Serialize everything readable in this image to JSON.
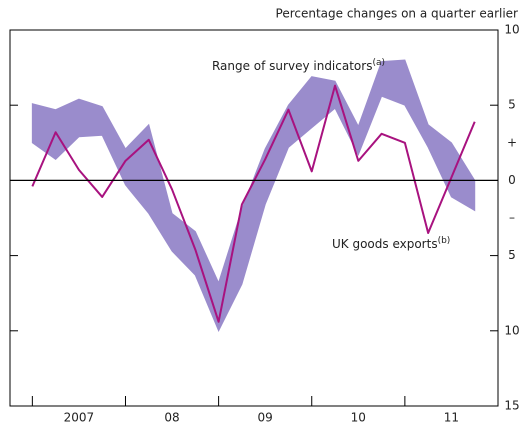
{
  "chart_data": {
    "type": "line",
    "y_axis_label": "Percentage changes on a quarter earlier",
    "x": [
      2007,
      2007.25,
      2007.5,
      2007.75,
      2008,
      2008.25,
      2008.5,
      2008.75,
      2009,
      2009.25,
      2009.5,
      2009.75,
      2010,
      2010.25,
      2010.5,
      2010.75,
      2011,
      2011.25,
      2011.5,
      2011.75
    ],
    "xlim": [
      2006.76,
      2012
    ],
    "xticks": [
      2007,
      {
        "value": 2008,
        "label": "08"
      },
      {
        "value": 2009,
        "label": "09"
      },
      {
        "value": 2010,
        "label": "10"
      },
      {
        "value": 2011,
        "label": "11"
      }
    ],
    "ylim": [
      -15,
      10
    ],
    "yticks": [
      10,
      5,
      0,
      {
        "value": -5,
        "label": "5"
      },
      {
        "value": -10,
        "label": "10"
      },
      {
        "value": -15,
        "label": "15"
      }
    ],
    "sign_labels": [
      "+",
      "–"
    ],
    "series": [
      {
        "name": "Range of survey indicators",
        "note": "(a)",
        "type": "band",
        "color": "#9a8ccc",
        "upper": [
          5.1,
          4.7,
          5.4,
          4.9,
          2.1,
          3.7,
          -2.2,
          -3.4,
          -6.8,
          -1.9,
          2.1,
          5.0,
          6.9,
          6.6,
          3.6,
          7.9,
          8.0,
          3.7,
          2.5,
          0
        ],
        "lower": [
          2.5,
          1.4,
          2.9,
          3.0,
          -0.3,
          -2.2,
          -4.7,
          -6.3,
          -10.0,
          -6.9,
          -1.6,
          2.2,
          3.5,
          4.8,
          1.7,
          5.6,
          5.0,
          2.2,
          -1.1,
          -2.0
        ]
      },
      {
        "name": "UK goods exports",
        "note": "(b)",
        "type": "line",
        "color": "#a8127f",
        "values": [
          -0.4,
          3.2,
          0.7,
          -1.1,
          1.3,
          2.7,
          -0.6,
          -4.6,
          -9.4,
          -1.6,
          1.4,
          4.7,
          0.6,
          6.3,
          1.3,
          3.1,
          2.5,
          -3.5,
          0.2,
          3.9
        ]
      }
    ]
  }
}
